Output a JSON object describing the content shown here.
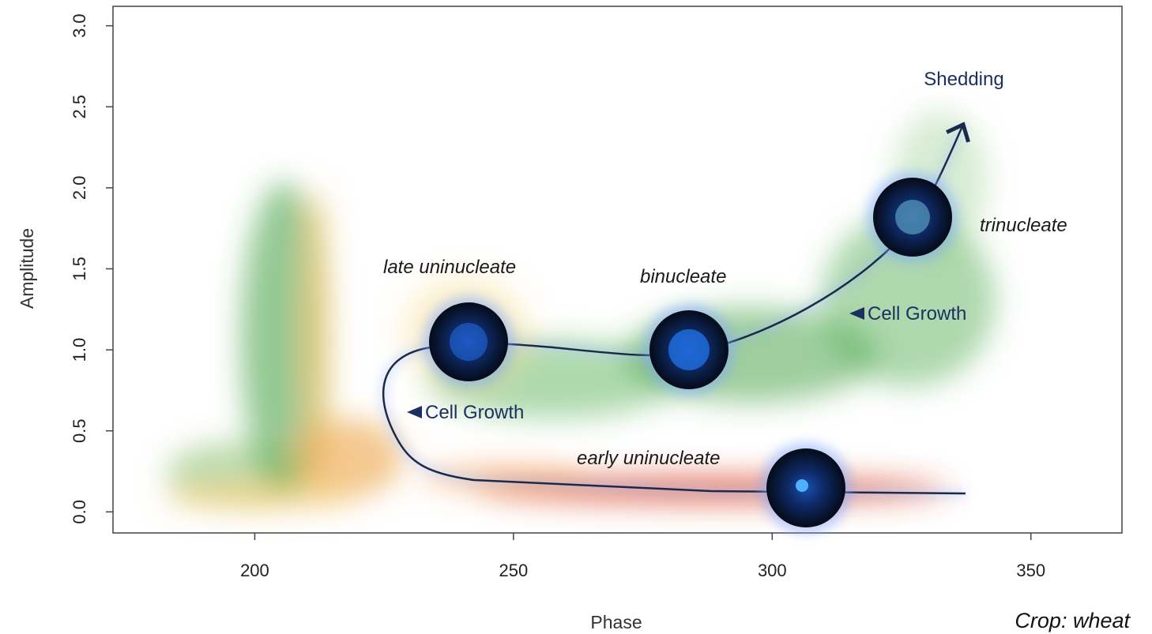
{
  "chart_data": {
    "type": "scatter",
    "x_label": "Phase",
    "y_label": "Amplitude",
    "xlim": [
      172.6,
      367.6
    ],
    "xticks": [
      200,
      250,
      300,
      350
    ],
    "ylim": [
      -0.13,
      3.12
    ],
    "yticks": [
      {
        "value": 0,
        "label": "0.0"
      },
      {
        "value": 0.5,
        "label": "0.5"
      },
      {
        "value": 1,
        "label": "1.0"
      },
      {
        "value": 1.5,
        "label": "1.5"
      },
      {
        "value": 2,
        "label": "2.0"
      },
      {
        "value": 2.5,
        "label": "2.5"
      },
      {
        "value": 3,
        "label": "3.0"
      }
    ],
    "annotations": [
      "Shedding",
      "trinucleate",
      "late uninucleate",
      "binucleate",
      "Cell Growth",
      "Cell Growth",
      "early uninucleate"
    ],
    "footnote": "Crop: wheat"
  }
}
